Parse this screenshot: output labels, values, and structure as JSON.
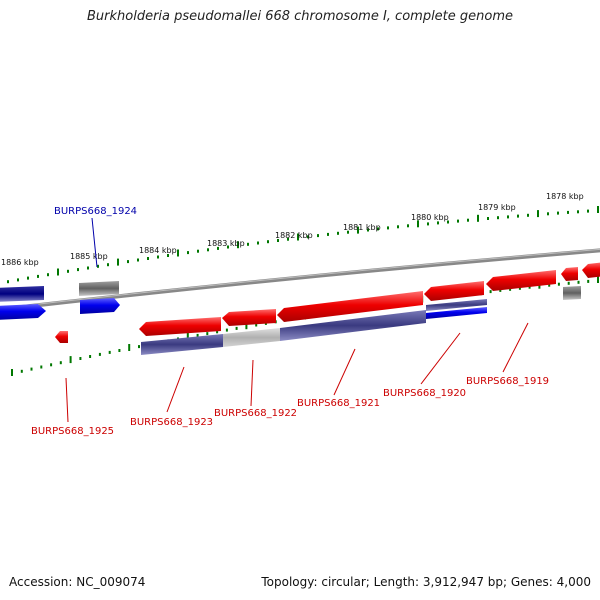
{
  "title": "Burkholderia pseudomallei 668 chromosome I, complete genome",
  "accession": "Accession: NC_009074",
  "topology": "Topology: circular; Length: 3,912,947 bp; Genes: 4,000",
  "scale_labels": [
    "1878 kbp",
    "1879 kbp",
    "1880 kbp",
    "1881 kbp",
    "1882 kbp",
    "1883 kbp",
    "1884 kbp",
    "1885 kbp",
    "1886 kbp"
  ],
  "gene_labels": [
    "BURPS668_1924",
    "BURPS668_1925",
    "BURPS668_1923",
    "BURPS668_1922",
    "BURPS668_1921",
    "BURPS668_1920",
    "BURPS668_1919"
  ],
  "colors": {
    "forward_gene": "#0000dd",
    "reverse_gene": "#ee0000",
    "ortholog_bar": "#4a4a8a",
    "gray_feature": "#777777",
    "backbone": "#888888",
    "tick": "#007700",
    "label_blue": "#0000aa",
    "label_red": "#cc0000"
  }
}
